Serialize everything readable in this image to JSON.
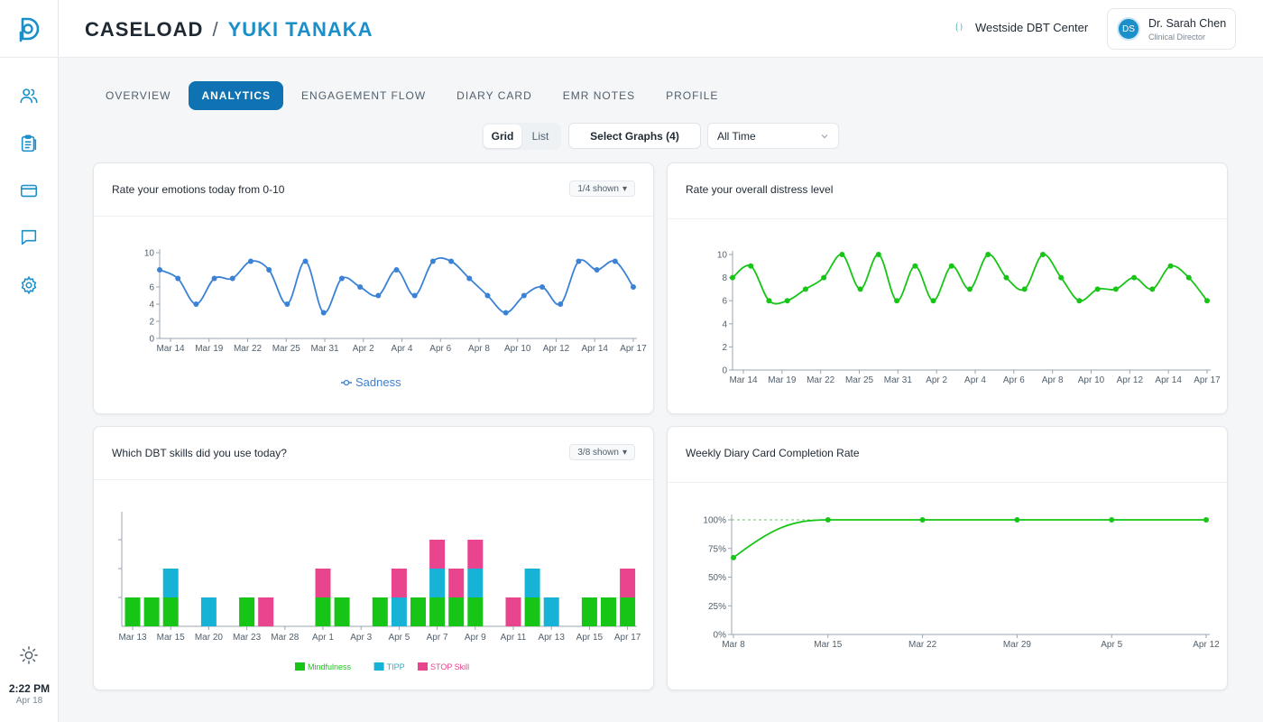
{
  "header": {
    "breadcrumb_root": "CASELOAD",
    "breadcrumb_sep": "/",
    "patient_name": "YUKI TANAKA",
    "org_name": "Westside DBT Center",
    "user": {
      "initials": "DS",
      "name": "Dr. Sarah Chen",
      "role": "Clinical Director"
    }
  },
  "sidebar": {
    "icons": [
      "users-icon",
      "clipboard-icon",
      "credit-card-icon",
      "message-icon",
      "gear-icon"
    ],
    "theme_icon": "sun-icon",
    "time": "2:22 PM",
    "date": "Apr 18"
  },
  "tabs": [
    {
      "label": "OVERVIEW",
      "active": false
    },
    {
      "label": "ANALYTICS",
      "active": true
    },
    {
      "label": "ENGAGEMENT FLOW",
      "active": false
    },
    {
      "label": "DIARY CARD",
      "active": false
    },
    {
      "label": "EMR NOTES",
      "active": false
    },
    {
      "label": "PROFILE",
      "active": false
    }
  ],
  "controls": {
    "view_grid": "Grid",
    "view_list": "List",
    "select_graphs": "Select Graphs (4)",
    "time_range": "All Time"
  },
  "cards": {
    "emotions": {
      "title": "Rate your emotions today from 0-10",
      "shown": "1/4 shown"
    },
    "distress": {
      "title": "Rate your overall distress level"
    },
    "skills": {
      "title": "Which DBT skills did you use today?",
      "shown": "3/8 shown"
    },
    "completion": {
      "title": "Weekly Diary Card Completion Rate"
    }
  },
  "colors": {
    "blue": "#3b82d6",
    "green": "#16c516",
    "cyan": "#16b3d6",
    "pink": "#e8458e",
    "accent": "#0f72b3"
  },
  "chart_data": [
    {
      "type": "line",
      "title": "Rate your emotions today from 0-10",
      "x_ticks": [
        "Mar 14",
        "Mar 19",
        "Mar 22",
        "Mar 25",
        "Mar 31",
        "Apr 2",
        "Apr 4",
        "Apr 6",
        "Apr 8",
        "Apr 10",
        "Apr 12",
        "Apr 14",
        "Apr 17"
      ],
      "y_ticks": [
        0,
        2,
        4,
        6,
        10
      ],
      "ylim": [
        0,
        10
      ],
      "series": [
        {
          "name": "Sadness",
          "color": "#3b82d6",
          "values": [
            8,
            7,
            4,
            7,
            7,
            9,
            8,
            4,
            9,
            3,
            7,
            6,
            5,
            8,
            5,
            9,
            9,
            7,
            5,
            3,
            5,
            6,
            4,
            9,
            8,
            9,
            6
          ]
        }
      ],
      "legend": "bottom-center"
    },
    {
      "type": "line",
      "title": "Rate your overall distress level",
      "x_ticks": [
        "Mar 14",
        "Mar 19",
        "Mar 22",
        "Mar 25",
        "Mar 31",
        "Apr 2",
        "Apr 4",
        "Apr 6",
        "Apr 8",
        "Apr 10",
        "Apr 12",
        "Apr 14",
        "Apr 17"
      ],
      "y_ticks": [
        0,
        2,
        4,
        6,
        8,
        10
      ],
      "ylim": [
        0,
        10
      ],
      "series": [
        {
          "color": "#16c516",
          "values": [
            8,
            9,
            6,
            6,
            7,
            8,
            10,
            7,
            10,
            6,
            9,
            6,
            9,
            7,
            10,
            8,
            7,
            10,
            8,
            6,
            7,
            7,
            8,
            7,
            9,
            8,
            6
          ]
        }
      ]
    },
    {
      "type": "bar",
      "stacked": true,
      "title": "Which DBT skills did you use today?",
      "categories": [
        "Mar 13",
        "",
        "Mar 15",
        "",
        "Mar 20",
        "",
        "Mar 23",
        "",
        "Mar 28",
        "",
        "Apr 1",
        "",
        "Apr 3",
        "",
        "Apr 5",
        "",
        "Apr 7",
        "",
        "Apr 9",
        "",
        "Apr 11",
        "",
        "Apr 13",
        "",
        "Apr 15",
        "",
        "Apr 17"
      ],
      "series": [
        {
          "name": "Mindfulness",
          "color": "#16c516",
          "values": [
            1,
            1,
            1,
            0,
            0,
            0,
            1,
            0,
            0,
            0,
            1,
            1,
            0,
            1,
            0,
            1,
            1,
            1,
            1,
            0,
            0,
            1,
            0,
            0,
            1,
            1,
            1
          ]
        },
        {
          "name": "TIPP",
          "color": "#16b3d6",
          "values": [
            0,
            0,
            1,
            0,
            1,
            0,
            0,
            0,
            0,
            0,
            0,
            0,
            0,
            0,
            1,
            0,
            1,
            0,
            1,
            0,
            0,
            1,
            1,
            0,
            0,
            0,
            0
          ]
        },
        {
          "name": "STOP Skill",
          "color": "#e8458e",
          "values": [
            0,
            0,
            0,
            0,
            0,
            0,
            0,
            1,
            0,
            0,
            1,
            0,
            0,
            0,
            1,
            0,
            1,
            1,
            1,
            0,
            1,
            0,
            0,
            0,
            0,
            0,
            1
          ]
        }
      ],
      "legend": "bottom-center"
    },
    {
      "type": "line",
      "title": "Weekly Diary Card Completion Rate",
      "x": [
        "Mar 8",
        "Mar 15",
        "Mar 22",
        "Mar 29",
        "Apr 5",
        "Apr 12"
      ],
      "y_ticks": [
        "0%",
        "25%",
        "50%",
        "75%",
        "100%"
      ],
      "ylim": [
        0,
        100
      ],
      "series": [
        {
          "color": "#16c516",
          "values": [
            67,
            100,
            100,
            100,
            100,
            100
          ]
        }
      ],
      "reference_line": 100
    }
  ]
}
